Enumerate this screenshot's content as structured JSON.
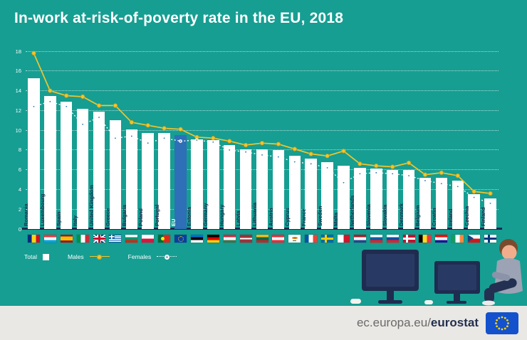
{
  "chart_data": {
    "type": "bar",
    "subtype": "bars-with-two-line-series",
    "title": "In-work at-risk-of-poverty rate in the EU, 2018",
    "categories": [
      "Romania",
      "Luxembourg",
      "Spain",
      "Italy",
      "United Kingdom",
      "Greece",
      "Bulgaria",
      "Poland",
      "Portugal",
      "EU",
      "Estonia",
      "Germany",
      "Hungary",
      "Latvia",
      "Lithuania",
      "Austria",
      "Cyprus",
      "France",
      "Sweden",
      "Malta",
      "Netherlands",
      "Slovenia",
      "Slovakia",
      "Denmark",
      "Belgium",
      "Croatia",
      "Ireland",
      "Czechia",
      "Finland"
    ],
    "series": [
      {
        "name": "Total",
        "type": "bar",
        "color": "#FFFFFF",
        "values": [
          15.3,
          13.5,
          12.9,
          12.2,
          11.9,
          11.0,
          10.1,
          9.7,
          9.7,
          9.5,
          9.1,
          9.0,
          8.5,
          8.1,
          8.1,
          8.0,
          7.4,
          7.1,
          6.8,
          6.4,
          6.2,
          6.1,
          6.0,
          6.0,
          5.2,
          5.2,
          4.9,
          3.5,
          3.1
        ]
      },
      {
        "name": "Males",
        "type": "line",
        "dash": "solid",
        "color": "#F0C52E",
        "values": [
          17.8,
          14.0,
          13.5,
          13.4,
          12.5,
          12.5,
          10.8,
          10.5,
          10.2,
          10.1,
          9.3,
          9.2,
          8.9,
          8.5,
          8.7,
          8.6,
          8.1,
          7.6,
          7.4,
          7.9,
          6.6,
          6.4,
          6.3,
          6.7,
          5.5,
          5.7,
          5.4,
          3.8,
          3.6
        ]
      },
      {
        "name": "Females",
        "type": "line",
        "dash": "dotted",
        "color": "#FFFFFF",
        "values": [
          12.4,
          12.9,
          12.4,
          10.6,
          11.3,
          9.2,
          9.4,
          8.7,
          9.2,
          8.9,
          9.0,
          8.8,
          8.0,
          7.8,
          7.5,
          7.3,
          6.8,
          6.6,
          6.2,
          4.7,
          5.6,
          5.7,
          5.6,
          5.4,
          4.9,
          4.6,
          4.3,
          3.2,
          2.6
        ]
      }
    ],
    "ylim": [
      0,
      18
    ],
    "yticks": [
      0,
      2,
      4,
      6,
      8,
      10,
      12,
      14,
      16,
      18
    ],
    "grid": "dotted-horizontal",
    "legend_position": "bottom-left",
    "highlight_category": "EU"
  },
  "flags": [
    {
      "country": "Romania",
      "t": "v",
      "c": [
        "#002B7F",
        "#FCD116",
        "#CE1126"
      ]
    },
    {
      "country": "Luxembourg",
      "t": "h",
      "c": [
        "#EF3340",
        "#FFFFFF",
        "#00A2E1"
      ]
    },
    {
      "country": "Spain",
      "t": "h",
      "c": [
        "#AA151B",
        "#F1BF00",
        "#AA151B"
      ],
      "w": [
        25,
        50,
        25
      ]
    },
    {
      "country": "Italy",
      "t": "v",
      "c": [
        "#009246",
        "#FFFFFF",
        "#CE2B37"
      ]
    },
    {
      "country": "United Kingdom",
      "t": "uk"
    },
    {
      "country": "Greece",
      "t": "gr"
    },
    {
      "country": "Bulgaria",
      "t": "h",
      "c": [
        "#FFFFFF",
        "#00966E",
        "#D62612"
      ]
    },
    {
      "country": "Poland",
      "t": "h",
      "c": [
        "#FFFFFF",
        "#DC143C"
      ]
    },
    {
      "country": "Portugal",
      "t": "pt"
    },
    {
      "country": "EU",
      "t": "eu"
    },
    {
      "country": "Estonia",
      "t": "h",
      "c": [
        "#0072CE",
        "#000000",
        "#FFFFFF"
      ]
    },
    {
      "country": "Germany",
      "t": "h",
      "c": [
        "#000000",
        "#DD0000",
        "#FFCE00"
      ]
    },
    {
      "country": "Hungary",
      "t": "h",
      "c": [
        "#CD2A3E",
        "#FFFFFF",
        "#436F4D"
      ]
    },
    {
      "country": "Latvia",
      "t": "h",
      "c": [
        "#9E3039",
        "#FFFFFF",
        "#9E3039"
      ],
      "w": [
        40,
        20,
        40
      ]
    },
    {
      "country": "Lithuania",
      "t": "h",
      "c": [
        "#FDB913",
        "#006A44",
        "#C1272D"
      ]
    },
    {
      "country": "Austria",
      "t": "h",
      "c": [
        "#ED2939",
        "#FFFFFF",
        "#ED2939"
      ]
    },
    {
      "country": "Cyprus",
      "t": "cy"
    },
    {
      "country": "France",
      "t": "v",
      "c": [
        "#0055A4",
        "#FFFFFF",
        "#EF4135"
      ]
    },
    {
      "country": "Sweden",
      "t": "nordic",
      "bg": "#006AA7",
      "cross": "#FECC00"
    },
    {
      "country": "Malta",
      "t": "v",
      "c": [
        "#FFFFFF",
        "#CF142B"
      ]
    },
    {
      "country": "Netherlands",
      "t": "h",
      "c": [
        "#AE1C28",
        "#FFFFFF",
        "#21468B"
      ]
    },
    {
      "country": "Slovenia",
      "t": "h",
      "c": [
        "#FFFFFF",
        "#005DA4",
        "#ED1C24"
      ]
    },
    {
      "country": "Slovakia",
      "t": "h",
      "c": [
        "#FFFFFF",
        "#0B4EA2",
        "#EE1C25"
      ]
    },
    {
      "country": "Denmark",
      "t": "nordic",
      "bg": "#C8102E",
      "cross": "#FFFFFF"
    },
    {
      "country": "Belgium",
      "t": "v",
      "c": [
        "#000000",
        "#FDDA24",
        "#EF3340"
      ]
    },
    {
      "country": "Croatia",
      "t": "h",
      "c": [
        "#FF0000",
        "#FFFFFF",
        "#171796"
      ]
    },
    {
      "country": "Ireland",
      "t": "v",
      "c": [
        "#169B62",
        "#FFFFFF",
        "#FF883E"
      ]
    },
    {
      "country": "Czechia",
      "t": "cz"
    },
    {
      "country": "Finland",
      "t": "nordic",
      "bg": "#FFFFFF",
      "cross": "#003580"
    }
  ],
  "legend": {
    "items": [
      {
        "label": "Total",
        "swatch": "square"
      },
      {
        "label": "Males",
        "swatch": "line-solid"
      },
      {
        "label": "Females",
        "swatch": "line-dotted"
      }
    ]
  },
  "footer": {
    "url_prefix": "ec.europa.eu/",
    "brand": "eurostat"
  },
  "colors": {
    "background": "#169E92",
    "bar": "#FFFFFF",
    "eu_bar": "#2E6FB7",
    "males_line": "#F0C52E",
    "males_marker_edge": "#C99E1C",
    "females_line": "#FFFFFF",
    "axis": "#1C2B4D",
    "grid": "rgba(255,255,255,0.65)",
    "footer_background": "#EAE8E4",
    "logo_blue": "#1352CC",
    "star_yellow": "#FFD617"
  }
}
